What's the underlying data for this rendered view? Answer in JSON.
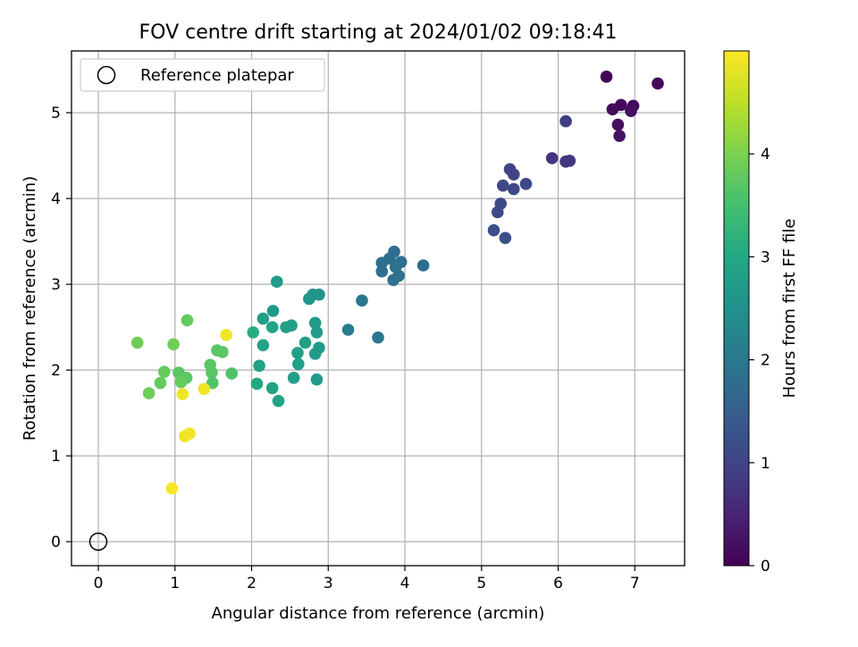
{
  "chart_data": {
    "type": "scatter",
    "title": "FOV centre drift starting at 2024/01/02 09:18:41",
    "xlabel": "Angular distance from reference (arcmin)",
    "ylabel": "Rotation from reference (arcmin)",
    "xlim": [
      -0.35,
      7.65
    ],
    "ylim": [
      -0.28,
      5.72
    ],
    "xticks": [
      0,
      1,
      2,
      3,
      4,
      5,
      6,
      7
    ],
    "yticks": [
      0,
      1,
      2,
      3,
      4,
      5
    ],
    "grid": true,
    "legend": {
      "position": "top-left",
      "entries": [
        {
          "label": "Reference platepar",
          "marker": "open-circle"
        }
      ]
    },
    "reference_point": {
      "x": 0,
      "y": 0,
      "label": "Reference platepar"
    },
    "colorbar": {
      "label": "Hours from first FF file",
      "colormap": "viridis",
      "range": [
        0,
        5
      ],
      "ticks": [
        0,
        1,
        2,
        3,
        4
      ]
    },
    "points": [
      {
        "x": 6.63,
        "y": 5.42,
        "c": 0.05
      },
      {
        "x": 7.3,
        "y": 5.34,
        "c": 0.08
      },
      {
        "x": 6.82,
        "y": 5.09,
        "c": 0.1
      },
      {
        "x": 6.98,
        "y": 5.08,
        "c": 0.12
      },
      {
        "x": 6.71,
        "y": 5.04,
        "c": 0.15
      },
      {
        "x": 6.95,
        "y": 5.02,
        "c": 0.18
      },
      {
        "x": 6.78,
        "y": 4.86,
        "c": 0.2
      },
      {
        "x": 6.8,
        "y": 4.73,
        "c": 0.22
      },
      {
        "x": 6.1,
        "y": 4.9,
        "c": 0.9
      },
      {
        "x": 5.92,
        "y": 4.47,
        "c": 0.75
      },
      {
        "x": 6.1,
        "y": 4.43,
        "c": 0.78
      },
      {
        "x": 6.15,
        "y": 4.44,
        "c": 0.8
      },
      {
        "x": 5.37,
        "y": 4.34,
        "c": 1.0
      },
      {
        "x": 5.42,
        "y": 4.28,
        "c": 1.0
      },
      {
        "x": 5.58,
        "y": 4.17,
        "c": 1.1
      },
      {
        "x": 5.28,
        "y": 4.15,
        "c": 1.1
      },
      {
        "x": 5.42,
        "y": 4.11,
        "c": 1.1
      },
      {
        "x": 5.25,
        "y": 3.94,
        "c": 1.1
      },
      {
        "x": 5.21,
        "y": 3.84,
        "c": 1.15
      },
      {
        "x": 5.16,
        "y": 3.63,
        "c": 1.2
      },
      {
        "x": 5.31,
        "y": 3.54,
        "c": 1.2
      },
      {
        "x": 3.86,
        "y": 3.38,
        "c": 1.8
      },
      {
        "x": 3.8,
        "y": 3.3,
        "c": 1.8
      },
      {
        "x": 3.7,
        "y": 3.25,
        "c": 1.8
      },
      {
        "x": 3.95,
        "y": 3.26,
        "c": 1.8
      },
      {
        "x": 4.24,
        "y": 3.22,
        "c": 1.8
      },
      {
        "x": 3.88,
        "y": 3.2,
        "c": 1.85
      },
      {
        "x": 3.7,
        "y": 3.15,
        "c": 1.85
      },
      {
        "x": 3.92,
        "y": 3.1,
        "c": 1.85
      },
      {
        "x": 3.85,
        "y": 3.05,
        "c": 1.85
      },
      {
        "x": 3.44,
        "y": 2.81,
        "c": 2.0
      },
      {
        "x": 3.26,
        "y": 2.47,
        "c": 2.1
      },
      {
        "x": 3.65,
        "y": 2.38,
        "c": 2.0
      },
      {
        "x": 2.33,
        "y": 3.03,
        "c": 2.7
      },
      {
        "x": 2.8,
        "y": 2.88,
        "c": 2.6
      },
      {
        "x": 2.88,
        "y": 2.88,
        "c": 2.6
      },
      {
        "x": 2.75,
        "y": 2.83,
        "c": 2.6
      },
      {
        "x": 2.28,
        "y": 2.69,
        "c": 2.7
      },
      {
        "x": 2.15,
        "y": 2.6,
        "c": 2.8
      },
      {
        "x": 2.83,
        "y": 2.55,
        "c": 2.7
      },
      {
        "x": 2.52,
        "y": 2.52,
        "c": 2.8
      },
      {
        "x": 2.45,
        "y": 2.5,
        "c": 2.8
      },
      {
        "x": 2.27,
        "y": 2.5,
        "c": 2.9
      },
      {
        "x": 2.85,
        "y": 2.44,
        "c": 2.7
      },
      {
        "x": 2.02,
        "y": 2.44,
        "c": 3.1
      },
      {
        "x": 2.7,
        "y": 2.32,
        "c": 2.8
      },
      {
        "x": 2.15,
        "y": 2.29,
        "c": 2.9
      },
      {
        "x": 2.88,
        "y": 2.26,
        "c": 2.7
      },
      {
        "x": 2.6,
        "y": 2.2,
        "c": 2.8
      },
      {
        "x": 2.83,
        "y": 2.19,
        "c": 2.7
      },
      {
        "x": 2.61,
        "y": 2.07,
        "c": 2.8
      },
      {
        "x": 2.1,
        "y": 2.05,
        "c": 2.9
      },
      {
        "x": 2.55,
        "y": 1.91,
        "c": 2.8
      },
      {
        "x": 2.85,
        "y": 1.89,
        "c": 2.7
      },
      {
        "x": 2.07,
        "y": 1.84,
        "c": 3.0
      },
      {
        "x": 2.27,
        "y": 1.79,
        "c": 2.9
      },
      {
        "x": 2.35,
        "y": 1.64,
        "c": 2.9
      },
      {
        "x": 1.16,
        "y": 2.58,
        "c": 3.8
      },
      {
        "x": 0.51,
        "y": 2.32,
        "c": 3.9
      },
      {
        "x": 0.98,
        "y": 2.3,
        "c": 3.9
      },
      {
        "x": 1.55,
        "y": 2.23,
        "c": 3.7
      },
      {
        "x": 1.62,
        "y": 2.21,
        "c": 3.7
      },
      {
        "x": 1.46,
        "y": 2.06,
        "c": 3.7
      },
      {
        "x": 0.86,
        "y": 1.98,
        "c": 3.8
      },
      {
        "x": 1.05,
        "y": 1.97,
        "c": 3.7
      },
      {
        "x": 1.48,
        "y": 1.97,
        "c": 3.7
      },
      {
        "x": 1.74,
        "y": 1.96,
        "c": 3.6
      },
      {
        "x": 1.15,
        "y": 1.91,
        "c": 3.7
      },
      {
        "x": 1.08,
        "y": 1.86,
        "c": 3.8
      },
      {
        "x": 0.81,
        "y": 1.85,
        "c": 3.8
      },
      {
        "x": 1.49,
        "y": 1.85,
        "c": 3.6
      },
      {
        "x": 0.66,
        "y": 1.73,
        "c": 3.9
      },
      {
        "x": 1.67,
        "y": 2.41,
        "c": 4.9
      },
      {
        "x": 1.38,
        "y": 1.78,
        "c": 4.9
      },
      {
        "x": 1.1,
        "y": 1.72,
        "c": 4.9
      },
      {
        "x": 1.19,
        "y": 1.26,
        "c": 4.9
      },
      {
        "x": 1.13,
        "y": 1.23,
        "c": 4.9
      },
      {
        "x": 0.96,
        "y": 0.62,
        "c": 4.95
      }
    ]
  }
}
